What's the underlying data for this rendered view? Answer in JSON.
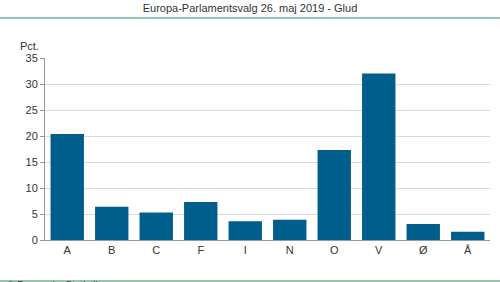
{
  "chart_data": {
    "type": "bar",
    "title": "Europa-Parlamentsvalg 26. maj 2019 - Glud",
    "y_label": "Pct.",
    "categories": [
      "A",
      "B",
      "C",
      "F",
      "I",
      "N",
      "O",
      "V",
      "Ø",
      "Å"
    ],
    "values": [
      20.4,
      6.4,
      5.3,
      7.3,
      3.6,
      3.9,
      17.3,
      32.0,
      3.1,
      1.6
    ],
    "color": "#005e8c",
    "ylim": [
      0,
      35
    ],
    "yticks": [
      0,
      5,
      10,
      15,
      20,
      25,
      30,
      35
    ],
    "grid": true,
    "annotations": [
      "© Danmarks Statistik"
    ]
  }
}
